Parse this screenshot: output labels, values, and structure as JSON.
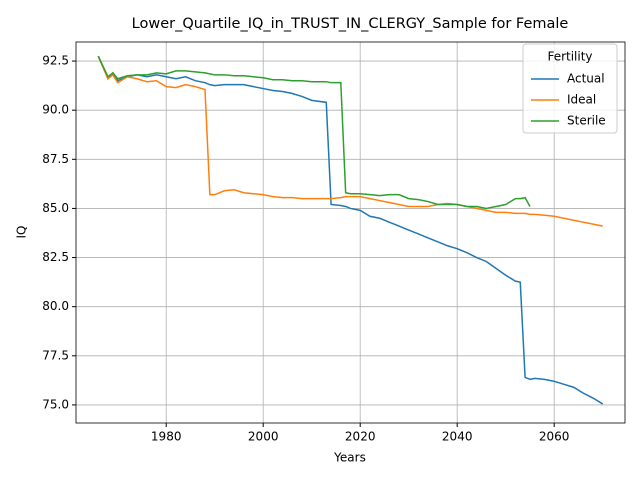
{
  "chart_data": {
    "type": "line",
    "title": "Lower_Quartile_IQ_in_TRUST_IN_CLERGY_Sample for Female",
    "xlabel": "Years",
    "ylabel": "IQ",
    "x": [
      1966,
      1968,
      1969,
      1970,
      1972,
      1974,
      1976,
      1978,
      1980,
      1982,
      1984,
      1986,
      1988,
      1989,
      1990,
      1992,
      1994,
      1996,
      1998,
      2000,
      2002,
      2004,
      2006,
      2008,
      2010,
      2013,
      2014,
      2016,
      2017,
      2018,
      2020,
      2022,
      2024,
      2026,
      2028,
      2030,
      2032,
      2034,
      2036,
      2038,
      2040,
      2042,
      2044,
      2046,
      2048,
      2050,
      2052,
      2053,
      2054,
      2055,
      2056,
      2058,
      2060,
      2062,
      2064,
      2066,
      2068,
      2070
    ],
    "series": [
      {
        "name": "Actual",
        "color": "#1f77b4",
        "values": [
          92.75,
          91.6,
          91.9,
          91.5,
          91.7,
          91.8,
          91.7,
          91.8,
          91.7,
          91.6,
          91.7,
          91.5,
          91.4,
          91.3,
          91.25,
          91.3,
          91.3,
          91.3,
          91.2,
          91.1,
          91.0,
          90.95,
          90.85,
          90.7,
          90.5,
          90.4,
          85.2,
          85.15,
          85.1,
          85.0,
          84.9,
          84.6,
          84.5,
          84.3,
          84.1,
          83.9,
          83.7,
          83.5,
          83.3,
          83.1,
          82.95,
          82.75,
          82.5,
          82.3,
          81.95,
          81.6,
          81.3,
          81.25,
          76.4,
          76.3,
          76.35,
          76.3,
          76.2,
          76.05,
          75.9,
          75.6,
          75.35,
          75.05
        ]
      },
      {
        "name": "Ideal",
        "color": "#ff7f0e",
        "values": [
          92.75,
          91.6,
          91.8,
          91.4,
          91.7,
          91.6,
          91.45,
          91.5,
          91.2,
          91.15,
          91.3,
          91.2,
          91.05,
          85.7,
          85.7,
          85.9,
          85.95,
          85.8,
          85.75,
          85.7,
          85.6,
          85.55,
          85.55,
          85.5,
          85.5,
          85.5,
          85.5,
          85.55,
          85.6,
          85.6,
          85.6,
          85.5,
          85.4,
          85.3,
          85.2,
          85.1,
          85.1,
          85.1,
          85.2,
          85.25,
          85.2,
          85.1,
          85.0,
          84.9,
          84.8,
          84.8,
          84.75,
          84.75,
          84.75,
          84.7,
          84.7,
          84.65,
          84.6,
          84.5,
          84.4,
          84.3,
          84.2,
          84.1
        ]
      },
      {
        "name": "Sterile",
        "color": "#2ca02c",
        "values": [
          92.75,
          91.7,
          91.9,
          91.6,
          91.75,
          91.8,
          91.8,
          91.9,
          91.85,
          92.0,
          92.0,
          91.95,
          91.9,
          91.85,
          91.8,
          91.8,
          91.75,
          91.75,
          91.7,
          91.65,
          91.55,
          91.55,
          91.5,
          91.5,
          91.45,
          91.45,
          91.4,
          91.4,
          85.8,
          85.75,
          85.75,
          85.7,
          85.65,
          85.7,
          85.7,
          85.5,
          85.45,
          85.35,
          85.2,
          85.2,
          85.2,
          85.1,
          85.1,
          85.0,
          85.1,
          85.2,
          85.5,
          85.5,
          85.55,
          85.1,
          null,
          null,
          null,
          null,
          null,
          null,
          null,
          null
        ]
      }
    ],
    "xlim": [
      1961.4,
      2074.6
    ],
    "ylim": [
      74.08,
      93.47
    ],
    "xticks": [
      1980,
      2000,
      2020,
      2040,
      2060
    ],
    "yticks": [
      {
        "value": 75,
        "label": "75.0"
      },
      77.5,
      {
        "value": 80,
        "label": "80.0"
      },
      82.5,
      {
        "value": 85,
        "label": "85.0"
      },
      87.5,
      {
        "value": 90,
        "label": "90.0"
      },
      92.5
    ],
    "grid": true,
    "legend_title": "Fertility",
    "legend_position": "upper right"
  }
}
